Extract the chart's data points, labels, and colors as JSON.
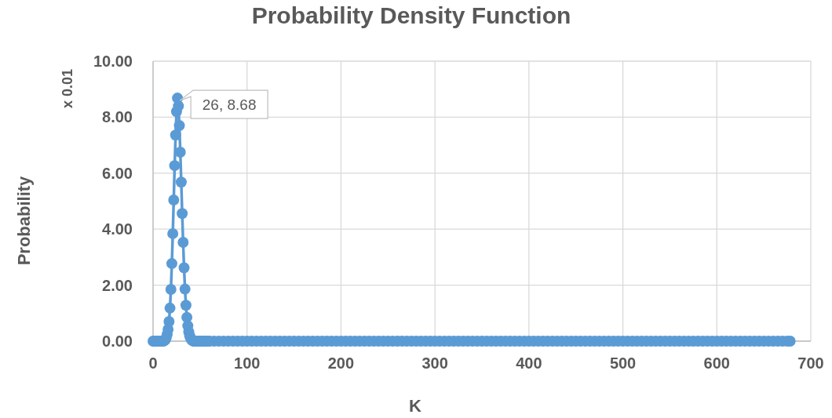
{
  "chart_data": {
    "type": "line",
    "title": "Probability Density Function",
    "xlabel": "K",
    "ylabel": "Probability",
    "annotations": [
      {
        "text": "26, 8.68",
        "x": 26,
        "y": 8.68
      },
      "x 0.01"
    ],
    "x": [
      0,
      1,
      2,
      3,
      4,
      5,
      6,
      7,
      8,
      9,
      10,
      11,
      12,
      13,
      14,
      15,
      16,
      17,
      18,
      19,
      20,
      21,
      22,
      23,
      24,
      25,
      26,
      27,
      28,
      29,
      30,
      31,
      32,
      33,
      34,
      35,
      36,
      37,
      38,
      39,
      40,
      41,
      42,
      43,
      44,
      45,
      46,
      47,
      48,
      49,
      50,
      51,
      52,
      53,
      54,
      55,
      56,
      57,
      58,
      59,
      60,
      65,
      70,
      75,
      80,
      85,
      90,
      95,
      100,
      105,
      110,
      115,
      120,
      125,
      130,
      135,
      140,
      145,
      150,
      155,
      160,
      165,
      170,
      175,
      180,
      185,
      190,
      195,
      200,
      205,
      210,
      215,
      220,
      225,
      230,
      235,
      240,
      245,
      250,
      255,
      260,
      265,
      270,
      275,
      280,
      285,
      290,
      295,
      300,
      305,
      310,
      315,
      320,
      325,
      330,
      335,
      340,
      345,
      350,
      355,
      360,
      365,
      370,
      375,
      380,
      385,
      390,
      395,
      400,
      405,
      410,
      415,
      420,
      425,
      430,
      435,
      440,
      445,
      450,
      455,
      460,
      465,
      470,
      475,
      480,
      485,
      490,
      495,
      500,
      505,
      510,
      515,
      520,
      525,
      530,
      535,
      540,
      545,
      550,
      555,
      560,
      565,
      570,
      575,
      580,
      585,
      590,
      595,
      600,
      605,
      610,
      615,
      620,
      625,
      630,
      635,
      640,
      645,
      650,
      655,
      660,
      665,
      670,
      675,
      678
    ],
    "series": [
      {
        "color": "#5b9bd5",
        "values": [
          0,
          0,
          0,
          0,
          0,
          0,
          0,
          0,
          0,
          0,
          0,
          0,
          0.02,
          0.05,
          0.12,
          0.24,
          0.42,
          0.7,
          1.18,
          1.85,
          2.77,
          3.84,
          5.04,
          6.27,
          7.36,
          8.2,
          8.68,
          8.4,
          7.7,
          6.75,
          5.68,
          4.56,
          3.53,
          2.62,
          1.86,
          1.28,
          0.85,
          0.55,
          0.33,
          0.19,
          0.1,
          0.05,
          0.02,
          0,
          0,
          0,
          0,
          0,
          0,
          0,
          0,
          0,
          0,
          0,
          0,
          0,
          0,
          0,
          0,
          0,
          0,
          0,
          0,
          0,
          0,
          0,
          0,
          0,
          0,
          0,
          0,
          0,
          0,
          0,
          0,
          0,
          0,
          0,
          0,
          0,
          0,
          0,
          0,
          0,
          0,
          0,
          0,
          0,
          0,
          0,
          0,
          0,
          0,
          0,
          0,
          0,
          0,
          0,
          0,
          0,
          0,
          0,
          0,
          0,
          0,
          0,
          0,
          0,
          0,
          0,
          0,
          0,
          0,
          0,
          0,
          0,
          0,
          0,
          0,
          0,
          0,
          0,
          0,
          0,
          0,
          0,
          0,
          0,
          0,
          0,
          0,
          0,
          0,
          0,
          0,
          0,
          0,
          0,
          0,
          0,
          0,
          0,
          0,
          0,
          0,
          0,
          0,
          0,
          0,
          0,
          0,
          0,
          0,
          0,
          0,
          0,
          0,
          0,
          0,
          0,
          0,
          0,
          0,
          0,
          0,
          0,
          0,
          0,
          0,
          0,
          0,
          0,
          0,
          0,
          0,
          0,
          0,
          0,
          0,
          0,
          0,
          0,
          0,
          0,
          0
        ]
      }
    ],
    "xlim": [
      0,
      700
    ],
    "xticks": [
      0,
      100,
      200,
      300,
      400,
      500,
      600,
      700
    ],
    "ylim": [
      0,
      10
    ],
    "yticks": [
      {
        "value": 0,
        "label": "0.00"
      },
      {
        "value": 2,
        "label": "2.00"
      },
      {
        "value": 4,
        "label": "4.00"
      },
      {
        "value": 6,
        "label": "6.00"
      },
      {
        "value": 8,
        "label": "8.00"
      },
      {
        "value": 10,
        "label": "10.00"
      }
    ],
    "grid": true,
    "marker": "circle",
    "line_style": "solid"
  }
}
